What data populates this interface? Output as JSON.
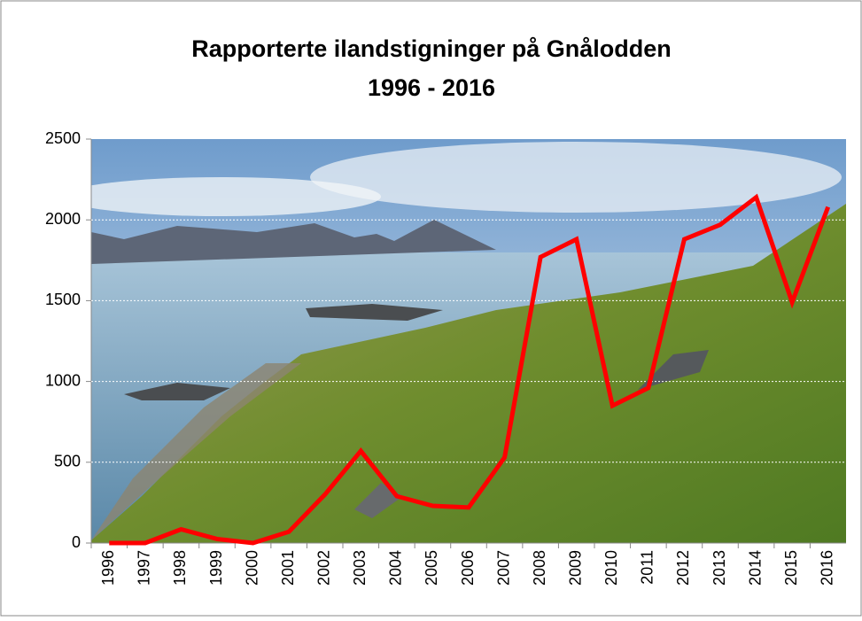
{
  "chart_data": {
    "type": "line",
    "title": "Rapporterte ilandstigninger på Gnålodden",
    "subtitle": "1996 - 2016",
    "categories": [
      "1996",
      "1997",
      "1998",
      "1999",
      "2000",
      "2001",
      "2002",
      "2003",
      "2004",
      "2005",
      "2006",
      "2007",
      "2008",
      "2009",
      "2010",
      "2011",
      "2012",
      "2013",
      "2014",
      "2015",
      "2016"
    ],
    "values": [
      0,
      0,
      85,
      25,
      0,
      70,
      300,
      570,
      290,
      230,
      220,
      530,
      1770,
      1880,
      850,
      960,
      1880,
      1970,
      2140,
      1490,
      2080
    ],
    "color": "#ff0000",
    "ylim": [
      0,
      2500
    ],
    "yticks": [
      0,
      500,
      1000,
      1500,
      2000,
      2500
    ],
    "grid": true
  }
}
